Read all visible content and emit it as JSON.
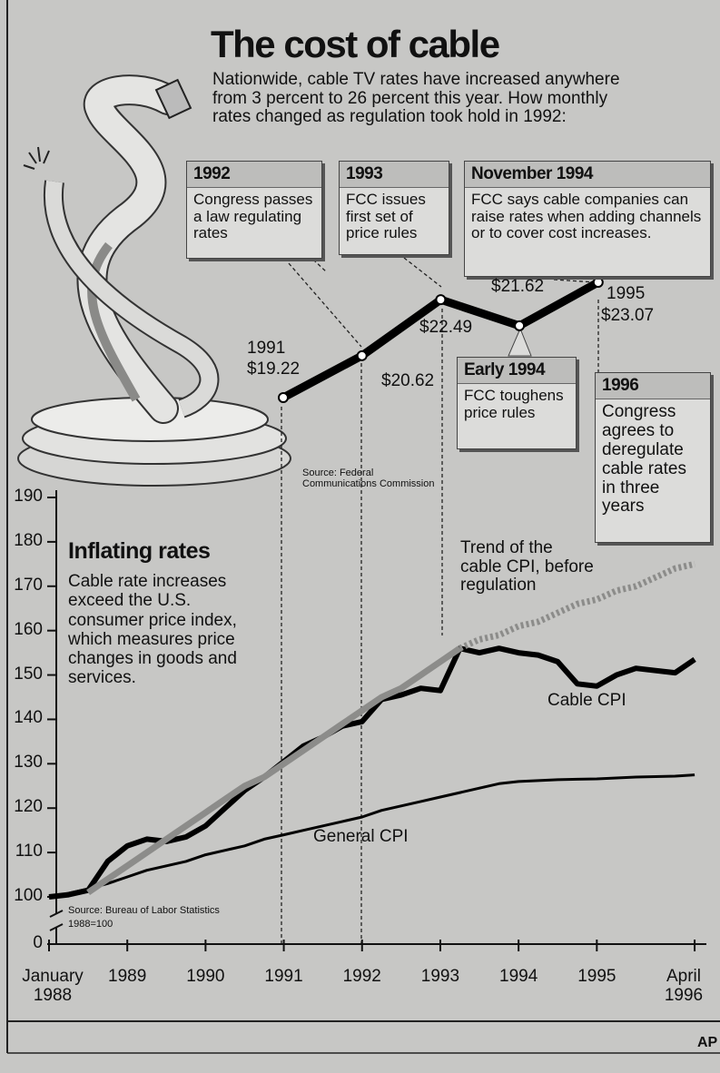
{
  "credit": "AP",
  "chart_data": [
    {
      "type": "line",
      "title": "The cost of cable",
      "subtitle": "Nationwide, cable TV rates have increased anywhere from 3 percent to 26 percent this year. How monthly rates changed as regulation took hold in 1992:",
      "source": "Source: Federal Communications Commission",
      "categories": [
        "1991",
        null,
        null,
        null,
        "1995"
      ],
      "values": [
        19.22,
        20.62,
        22.49,
        21.62,
        23.07
      ],
      "value_labels": [
        "$19.22",
        "$20.62",
        "$22.49",
        "$21.62",
        "$23.07"
      ],
      "color": "#000000",
      "annotations": [
        {
          "title": "1992",
          "text": "Congress passes a law regulating rates"
        },
        {
          "title": "1993",
          "text": "FCC issues first set of price rules"
        },
        {
          "title": "November 1994",
          "text": "FCC says cable companies can raise rates when adding channels or to cover cost increases."
        },
        {
          "title": "Early 1994",
          "text": "FCC toughens price rules"
        },
        {
          "title": "1996",
          "text": "Congress agrees to deregulate cable rates in three years"
        }
      ]
    },
    {
      "type": "line",
      "title": "Inflating rates",
      "subtitle": "Cable rate increases exceed the U.S. consumer price index, which measures price changes in goods and services.",
      "source": "Source: Bureau of Labor Statistics",
      "note": "1988=100",
      "x": [
        1988,
        1988.25,
        1988.5,
        1988.75,
        1989,
        1989.25,
        1989.5,
        1989.75,
        1990,
        1990.25,
        1990.5,
        1990.75,
        1991,
        1991.25,
        1991.5,
        1991.75,
        1992,
        1992.25,
        1992.5,
        1992.75,
        1993,
        1993.25,
        1993.5,
        1993.75,
        1994,
        1994.25,
        1994.5,
        1994.75,
        1995,
        1995.25,
        1995.5,
        1995.75,
        1996,
        1996.25
      ],
      "series": [
        {
          "name": "Cable CPI",
          "color": "#000000",
          "style": "solid",
          "values": [
            100,
            100.5,
            101.5,
            108,
            111.5,
            113,
            112.5,
            113.5,
            116,
            120,
            124,
            127,
            130.5,
            134,
            136,
            138.5,
            139.5,
            144.5,
            145.5,
            147,
            146.5,
            156,
            155,
            156,
            155,
            154.5,
            153,
            148,
            147.5,
            150,
            151.5,
            151,
            150.5,
            153.5
          ]
        },
        {
          "name": "General CPI",
          "color": "#000000",
          "style": "solid",
          "values": [
            100,
            100.8,
            101.8,
            103,
            104.5,
            106,
            107,
            108,
            109.5,
            110.5,
            111.5,
            113,
            114,
            115,
            116,
            117,
            118,
            119.5,
            120.5,
            121.5,
            122.5,
            123.5,
            124.5,
            125.5,
            126,
            126.2,
            126.4,
            126.5,
            126.6,
            126.8,
            127,
            127.1,
            127.2,
            127.5
          ]
        },
        {
          "color": "#8c8c8a",
          "style": "solid",
          "values": [
            null,
            null,
            101,
            104,
            107,
            110,
            113,
            116,
            119,
            122,
            125,
            127,
            130,
            133,
            136,
            139,
            142,
            145,
            147,
            150,
            153,
            156,
            null,
            null,
            null,
            null,
            null,
            null,
            null,
            null,
            null,
            null,
            null,
            null
          ]
        },
        {
          "name": "Trend of the cable CPI, before regulation",
          "color": "#8c8c8a",
          "style": "dotted",
          "values": [
            null,
            null,
            null,
            null,
            null,
            null,
            null,
            null,
            null,
            null,
            null,
            null,
            null,
            null,
            null,
            null,
            null,
            null,
            null,
            null,
            null,
            156,
            158,
            159,
            161,
            162,
            164,
            166,
            167,
            169,
            170,
            172,
            174,
            175
          ]
        }
      ],
      "xlim": [
        1988,
        1996.4
      ],
      "xticks": [
        {
          "value": 1988,
          "label": "January 1988"
        },
        1989,
        1990,
        1991,
        1992,
        1993,
        1994,
        1995,
        {
          "value": 1996.25,
          "label": "April 1996"
        }
      ],
      "ylim": [
        0,
        190
      ],
      "y_break": [
        0,
        100
      ],
      "yticks": [
        0,
        100,
        110,
        120,
        130,
        140,
        150,
        160,
        170,
        180,
        190
      ]
    }
  ]
}
